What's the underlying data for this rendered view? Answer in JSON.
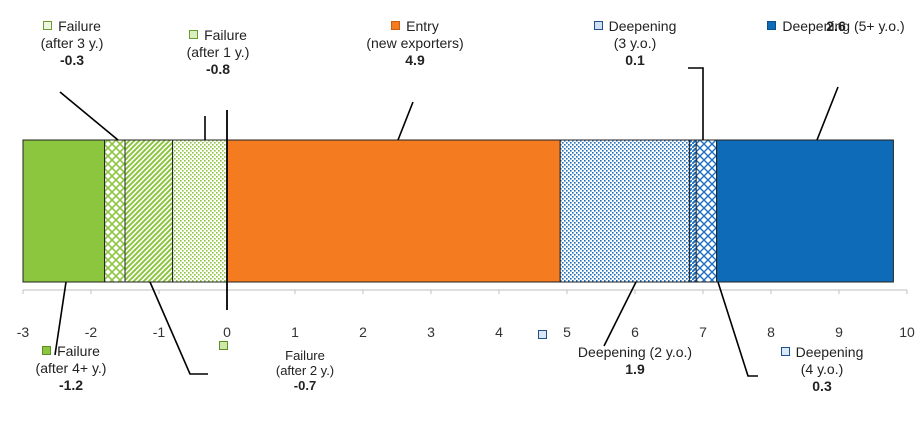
{
  "chart_data": {
    "type": "bar",
    "orientation": "horizontal-stacked",
    "xlim": [
      -3,
      10
    ],
    "x_ticks": [
      "-3",
      "-2",
      "-1",
      "0",
      "1",
      "2",
      "3",
      "4",
      "5",
      "6",
      "7",
      "8",
      "9",
      "10"
    ],
    "grid": false,
    "segments": [
      {
        "key": "f4",
        "name_line1": "Failure",
        "name_line2": "(after 4+ y.)",
        "value": -1.2,
        "value_label": "-1.2",
        "color": "#8cc63f",
        "pattern": "solid"
      },
      {
        "key": "f3",
        "name_line1": "Failure",
        "name_line2": "(after 3 y.)",
        "value": -0.3,
        "value_label": "-0.3",
        "color": "#8cc63f",
        "pattern": "crosshatch"
      },
      {
        "key": "f2",
        "name_line1": "Failure",
        "name_line2": "(after 2 y.)",
        "value": -0.7,
        "value_label": "-0.7",
        "color": "#8cc63f",
        "pattern": "diagonal"
      },
      {
        "key": "f1",
        "name_line1": "Failure",
        "name_line2": "(after 1 y.)",
        "value": -0.8,
        "value_label": "-0.8",
        "color": "#8cc63f",
        "pattern": "dots"
      },
      {
        "key": "entry",
        "name_line1": "Entry",
        "name_line2": "(new exporters)",
        "value": 4.9,
        "value_label": "4.9",
        "color": "#f47b20",
        "pattern": "solid"
      },
      {
        "key": "d2",
        "name_line1": "Deepening (2 y.o.)",
        "name_line2": "",
        "value": 1.9,
        "value_label": "1.9",
        "color": "#1f6fbf",
        "pattern": "dots"
      },
      {
        "key": "d3",
        "name_line1": "Deepening",
        "name_line2": "(3 y.o.)",
        "value": 0.1,
        "value_label": "0.1",
        "color": "#1f6fbf",
        "pattern": "diagonal"
      },
      {
        "key": "d4",
        "name_line1": "Deepening",
        "name_line2": "(4 y.o.)",
        "value": 0.3,
        "value_label": "0.3",
        "color": "#1f6fbf",
        "pattern": "crosshatch"
      },
      {
        "key": "d5",
        "name_line1": "Deepening (5+ y.o.)",
        "name_line2": "",
        "value": 2.6,
        "value_label": "2.6",
        "color": "#0e6bb8",
        "pattern": "solid"
      }
    ]
  }
}
